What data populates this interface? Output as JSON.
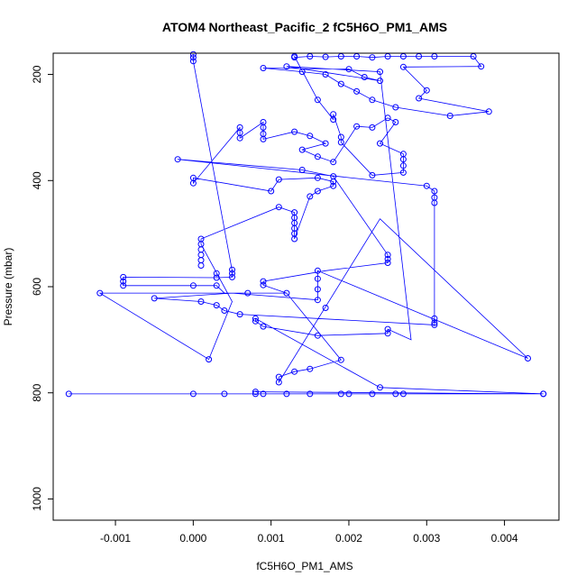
{
  "chart_data": {
    "type": "scatter",
    "title": "ATOM4 Northeast_Pacific_2 fC5H6O_PM1_AMS",
    "xlabel": "fC5H6O_PM1_AMS",
    "ylabel": "Pressure (mbar)",
    "xlim": [
      -0.0018,
      0.0047
    ],
    "ylim": [
      1040,
      160
    ],
    "y_reversed": true,
    "x_ticks": [
      -0.001,
      0.0,
      0.001,
      0.002,
      0.003,
      0.004
    ],
    "x_tick_labels": [
      "-0.001",
      "0.000",
      "0.001",
      "0.002",
      "0.003",
      "0.004"
    ],
    "y_ticks": [
      200,
      400,
      600,
      800,
      1000
    ],
    "y_tick_labels": [
      "200",
      "400",
      "600",
      "800",
      "1000"
    ],
    "grid": false,
    "legend": "none",
    "series_color": "#0000ff",
    "marker": "open-circle",
    "series": [
      {
        "points": [
          [
            0.0,
            162
          ],
          [
            0.0,
            168
          ],
          [
            0.0,
            175
          ],
          [
            -0.0002,
            360
          ],
          [
            0.0014,
            380
          ],
          [
            0.0018,
            392
          ],
          [
            0.003,
            410
          ],
          [
            0.0031,
            420
          ],
          [
            0.0031,
            432
          ],
          [
            0.0031,
            442
          ],
          [
            0.0025,
            540
          ],
          [
            0.0025,
            548
          ],
          [
            0.0025,
            555
          ],
          [
            0.0016,
            570
          ],
          [
            0.0016,
            585
          ],
          [
            0.0016,
            605
          ],
          [
            0.0016,
            625
          ],
          [
            0.0017,
            640
          ],
          [
            0.0031,
            660
          ],
          [
            0.0031,
            668
          ],
          [
            0.0031,
            672
          ],
          [
            0.0025,
            680
          ],
          [
            0.0025,
            688
          ],
          [
            0.0043,
            735
          ],
          [
            0.0024,
            790
          ],
          [
            0.0045,
            802
          ],
          [
            -0.0016,
            802
          ],
          [
            0.0,
            802
          ],
          [
            0.0004,
            802
          ],
          [
            0.0008,
            802
          ],
          [
            0.0009,
            802
          ],
          [
            0.0012,
            802
          ],
          [
            0.0015,
            802
          ],
          [
            0.0019,
            802
          ],
          [
            0.002,
            802
          ],
          [
            0.0023,
            802
          ],
          [
            0.0026,
            802
          ],
          [
            0.0027,
            802
          ],
          [
            0.0045,
            802
          ],
          [
            0.0008,
            798
          ],
          [
            0.0011,
            780
          ],
          [
            0.0011,
            770
          ],
          [
            0.0013,
            760
          ],
          [
            0.0015,
            755
          ],
          [
            0.0019,
            738
          ],
          [
            0.0016,
            692
          ],
          [
            0.0009,
            675
          ],
          [
            0.0008,
            665
          ],
          [
            0.0008,
            660
          ],
          [
            0.0006,
            652
          ],
          [
            0.0004,
            645
          ],
          [
            0.0003,
            635
          ],
          [
            0.0001,
            628
          ],
          [
            -0.0005,
            622
          ],
          [
            -0.0012,
            612
          ],
          [
            0.0002,
            737
          ],
          [
            0.0007,
            612
          ],
          [
            0.0012,
            612
          ],
          [
            0.0009,
            597
          ],
          [
            0.0009,
            590
          ],
          [
            0.0005,
            582
          ],
          [
            0.0005,
            575
          ],
          [
            0.0005,
            568
          ],
          [
            0.0003,
            583
          ],
          [
            0.0003,
            575
          ],
          [
            -0.0009,
            582
          ],
          [
            -0.0009,
            590
          ],
          [
            -0.0009,
            598
          ],
          [
            0.0,
            598
          ],
          [
            0.0003,
            598
          ],
          [
            0.0001,
            520
          ],
          [
            0.0001,
            530
          ],
          [
            0.0001,
            540
          ],
          [
            0.0001,
            550
          ],
          [
            0.0001,
            560
          ],
          [
            0.0001,
            510
          ],
          [
            0.0011,
            450
          ],
          [
            0.0013,
            460
          ],
          [
            0.0013,
            470
          ],
          [
            0.0013,
            480
          ],
          [
            0.0013,
            490
          ],
          [
            0.0013,
            500
          ],
          [
            0.0013,
            510
          ],
          [
            0.0015,
            430
          ],
          [
            0.0016,
            420
          ],
          [
            0.0018,
            410
          ],
          [
            0.0018,
            402
          ],
          [
            0.0016,
            395
          ],
          [
            0.0011,
            398
          ],
          [
            0.001,
            420
          ],
          [
            0.0,
            395
          ],
          [
            0.0,
            405
          ],
          [
            0.0006,
            300
          ],
          [
            0.0006,
            310
          ],
          [
            0.0006,
            320
          ],
          [
            0.0009,
            290
          ],
          [
            0.0009,
            300
          ],
          [
            0.0009,
            312
          ],
          [
            0.0009,
            322
          ],
          [
            0.0013,
            308
          ],
          [
            0.0015,
            316
          ],
          [
            0.0017,
            330
          ],
          [
            0.0014,
            342
          ],
          [
            0.0016,
            355
          ],
          [
            0.0018,
            365
          ],
          [
            0.0021,
            298
          ],
          [
            0.0023,
            300
          ],
          [
            0.0025,
            282
          ],
          [
            0.0026,
            290
          ],
          [
            0.0024,
            330
          ],
          [
            0.0027,
            350
          ],
          [
            0.0027,
            360
          ],
          [
            0.0027,
            372
          ],
          [
            0.0027,
            385
          ],
          [
            0.0023,
            390
          ],
          [
            0.0019,
            328
          ],
          [
            0.0019,
            318
          ],
          [
            0.0018,
            275
          ],
          [
            0.0018,
            285
          ],
          [
            0.0016,
            248
          ],
          [
            0.0013,
            166
          ],
          [
            0.0013,
            168
          ],
          [
            0.0015,
            166
          ],
          [
            0.0017,
            167
          ],
          [
            0.0019,
            166
          ],
          [
            0.0021,
            166
          ],
          [
            0.0023,
            168
          ],
          [
            0.0025,
            166
          ],
          [
            0.0027,
            166
          ],
          [
            0.0029,
            166
          ],
          [
            0.0031,
            166
          ],
          [
            0.0036,
            166
          ],
          [
            0.0037,
            185
          ],
          [
            0.0027,
            186
          ],
          [
            0.003,
            230
          ],
          [
            0.0029,
            245
          ],
          [
            0.0038,
            270
          ],
          [
            0.0033,
            278
          ],
          [
            0.0026,
            262
          ],
          [
            0.0023,
            248
          ],
          [
            0.0021,
            232
          ],
          [
            0.0019,
            218
          ],
          [
            0.0017,
            200
          ],
          [
            0.0014,
            195
          ],
          [
            0.0009,
            188
          ],
          [
            0.002,
            190
          ],
          [
            0.0022,
            205
          ],
          [
            0.0024,
            212
          ],
          [
            0.0012,
            185
          ],
          [
            0.0024,
            195
          ]
        ],
        "path": [
          [
            0.0,
            162
          ],
          [
            0.0,
            168
          ],
          [
            0.0,
            175
          ],
          [
            0.0005,
            570
          ],
          [
            0.0005,
            582
          ],
          [
            0.0003,
            583
          ],
          [
            -0.0009,
            582
          ],
          [
            -0.0009,
            590
          ],
          [
            -0.0009,
            598
          ],
          [
            0.0003,
            598
          ],
          [
            0.0004,
            612
          ],
          [
            0.0012,
            612
          ],
          [
            0.0009,
            597
          ],
          [
            0.0009,
            590
          ],
          [
            0.0017,
            570
          ],
          [
            0.0025,
            555
          ],
          [
            0.0025,
            548
          ],
          [
            0.0025,
            540
          ],
          [
            0.0018,
            392
          ],
          [
            0.0014,
            380
          ],
          [
            -0.0002,
            360
          ],
          [
            0.003,
            410
          ],
          [
            0.0031,
            420
          ],
          [
            0.0031,
            432
          ],
          [
            0.0031,
            442
          ],
          [
            0.0031,
            660
          ],
          [
            0.0031,
            668
          ],
          [
            0.0031,
            672
          ],
          [
            0.0006,
            652
          ],
          [
            0.0004,
            645
          ],
          [
            0.0003,
            635
          ],
          [
            0.0001,
            628
          ],
          [
            -0.0005,
            622
          ],
          [
            0.0005,
            612
          ],
          [
            0.0016,
            625
          ],
          [
            0.0016,
            605
          ],
          [
            0.0016,
            585
          ],
          [
            0.0016,
            570
          ],
          [
            0.0043,
            735
          ],
          [
            0.0024,
            472
          ],
          [
            0.0011,
            780
          ],
          [
            0.0011,
            770
          ],
          [
            0.0013,
            760
          ],
          [
            0.0015,
            755
          ],
          [
            0.0019,
            738
          ],
          [
            0.0012,
            612
          ],
          [
            -0.0012,
            612
          ],
          [
            0.0002,
            737
          ],
          [
            0.0005,
            628
          ],
          [
            0.0001,
            520
          ],
          [
            0.0001,
            510
          ],
          [
            0.0011,
            450
          ],
          [
            0.0013,
            460
          ],
          [
            0.0013,
            470
          ],
          [
            0.0013,
            480
          ],
          [
            0.0013,
            490
          ],
          [
            0.0013,
            500
          ],
          [
            0.0013,
            510
          ],
          [
            0.0015,
            430
          ],
          [
            0.0016,
            420
          ],
          [
            0.0018,
            410
          ],
          [
            0.0018,
            402
          ],
          [
            0.0016,
            395
          ],
          [
            0.0011,
            398
          ],
          [
            0.001,
            420
          ],
          [
            0.0,
            395
          ],
          [
            0.0,
            405
          ],
          [
            0.0006,
            300
          ],
          [
            0.0006,
            310
          ],
          [
            0.0006,
            320
          ],
          [
            0.0009,
            290
          ],
          [
            0.0009,
            300
          ],
          [
            0.0009,
            312
          ],
          [
            0.0009,
            322
          ],
          [
            0.0013,
            308
          ],
          [
            0.0015,
            316
          ],
          [
            0.0017,
            330
          ],
          [
            0.0014,
            342
          ],
          [
            0.0016,
            355
          ],
          [
            0.0018,
            365
          ],
          [
            0.0021,
            298
          ],
          [
            0.0023,
            300
          ],
          [
            0.0025,
            282
          ],
          [
            0.0026,
            290
          ],
          [
            0.0024,
            330
          ],
          [
            0.0027,
            350
          ],
          [
            0.0027,
            360
          ],
          [
            0.0027,
            372
          ],
          [
            0.0027,
            385
          ],
          [
            0.0023,
            390
          ],
          [
            0.0019,
            328
          ],
          [
            0.0019,
            318
          ],
          [
            0.0018,
            275
          ],
          [
            0.0018,
            285
          ],
          [
            0.0016,
            248
          ],
          [
            0.0013,
            166
          ],
          [
            0.0013,
            168
          ],
          [
            0.0015,
            166
          ],
          [
            0.0017,
            167
          ],
          [
            0.0019,
            166
          ],
          [
            0.0021,
            166
          ],
          [
            0.0023,
            168
          ],
          [
            0.0025,
            166
          ],
          [
            0.0027,
            166
          ],
          [
            0.0029,
            166
          ],
          [
            0.0031,
            166
          ],
          [
            0.0036,
            166
          ],
          [
            0.0037,
            185
          ],
          [
            0.0027,
            186
          ],
          [
            0.003,
            230
          ],
          [
            0.0029,
            245
          ],
          [
            0.0038,
            270
          ],
          [
            0.0033,
            278
          ],
          [
            0.0026,
            262
          ],
          [
            0.0023,
            248
          ],
          [
            0.0021,
            232
          ],
          [
            0.0019,
            218
          ],
          [
            0.0017,
            200
          ],
          [
            0.0014,
            195
          ],
          [
            0.0009,
            188
          ],
          [
            0.002,
            190
          ],
          [
            0.0022,
            205
          ],
          [
            0.0024,
            212
          ],
          [
            0.0012,
            185
          ],
          [
            0.0024,
            195
          ],
          [
            0.0028,
            700
          ],
          [
            0.0025,
            680
          ],
          [
            0.0025,
            688
          ],
          [
            0.0016,
            692
          ],
          [
            0.0009,
            675
          ],
          [
            0.0008,
            665
          ],
          [
            0.0008,
            660
          ],
          [
            0.0024,
            790
          ],
          [
            0.0045,
            802
          ],
          [
            -0.0016,
            802
          ],
          [
            0.0,
            802
          ],
          [
            0.0004,
            802
          ],
          [
            0.0008,
            802
          ],
          [
            0.0009,
            802
          ],
          [
            0.0012,
            802
          ],
          [
            0.0015,
            802
          ],
          [
            0.0019,
            802
          ],
          [
            0.002,
            802
          ],
          [
            0.0023,
            802
          ],
          [
            0.0026,
            802
          ],
          [
            0.0027,
            802
          ],
          [
            0.0045,
            802
          ],
          [
            0.0008,
            798
          ]
        ]
      }
    ]
  }
}
